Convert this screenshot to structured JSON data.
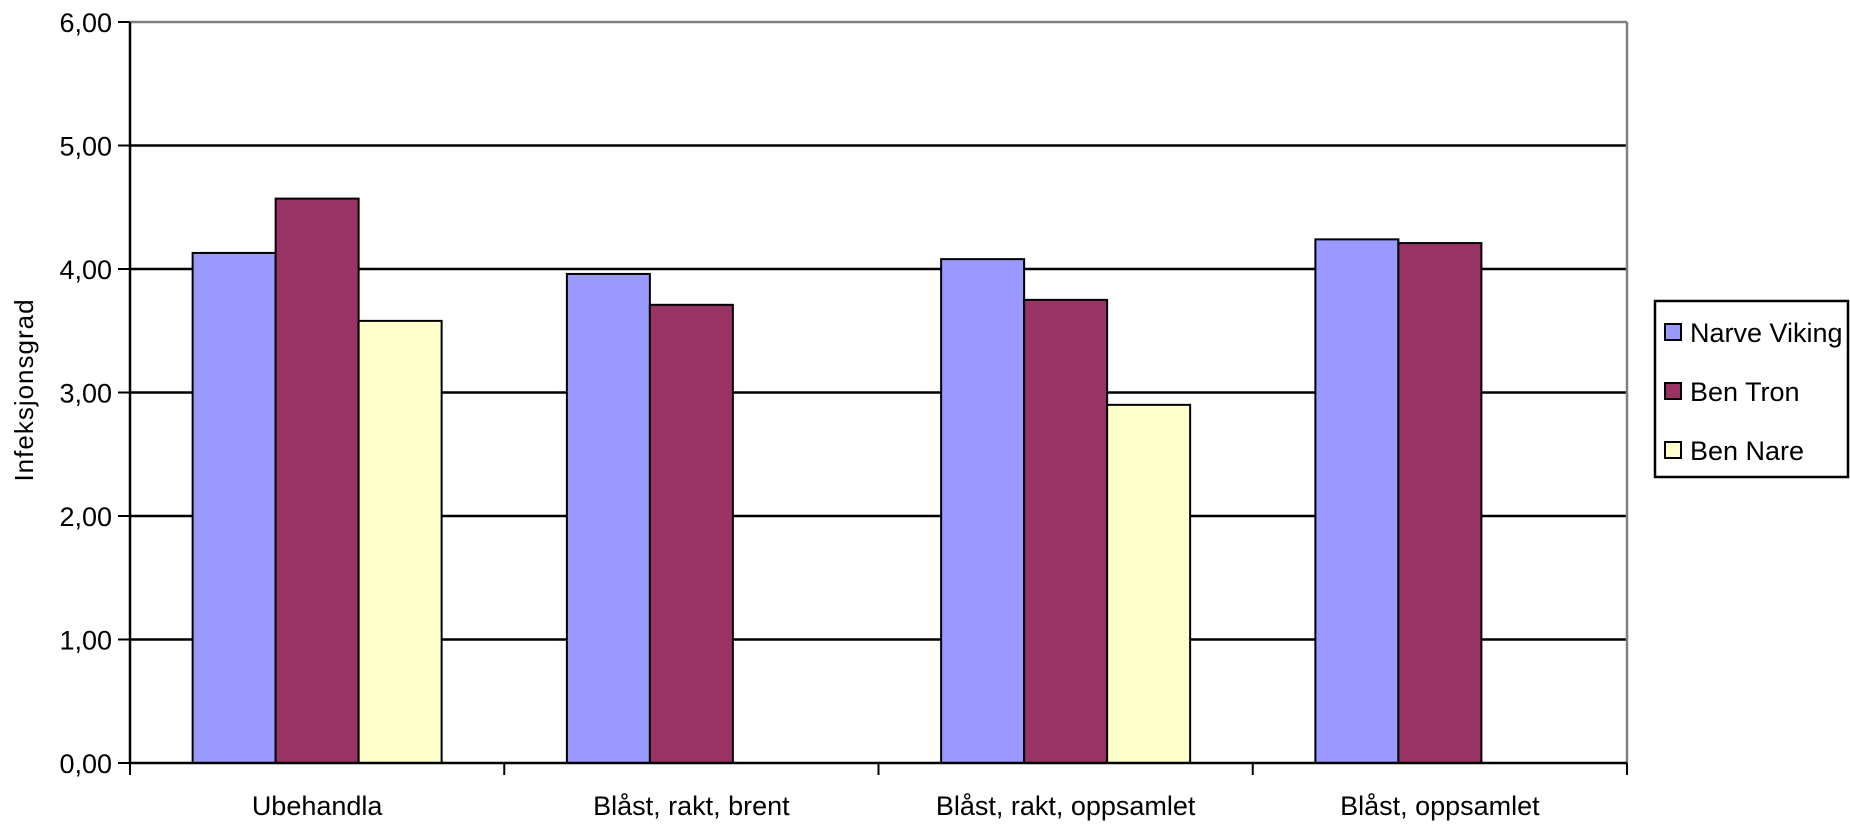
{
  "chart_data": {
    "type": "bar",
    "ylabel": "Infeksjonsgrad",
    "ylim": [
      0,
      6
    ],
    "yticks": [
      "0,00",
      "1,00",
      "2,00",
      "3,00",
      "4,00",
      "5,00",
      "6,00"
    ],
    "grid": true,
    "legend_position": "right",
    "categories": [
      "Ubehandla",
      "Blåst, rakt, brent",
      "Blåst, rakt, oppsamlet",
      "Blåst, oppsamlet"
    ],
    "series": [
      {
        "name": "Narve Viking",
        "color": "#9999ff",
        "values": [
          4.13,
          3.96,
          4.08,
          4.24
        ]
      },
      {
        "name": "Ben Tron",
        "color": "#993366",
        "values": [
          4.57,
          3.71,
          3.75,
          4.21
        ]
      },
      {
        "name": "Ben Nare",
        "color": "#ffffcc",
        "values": [
          3.58,
          null,
          2.9,
          null
        ]
      }
    ]
  }
}
